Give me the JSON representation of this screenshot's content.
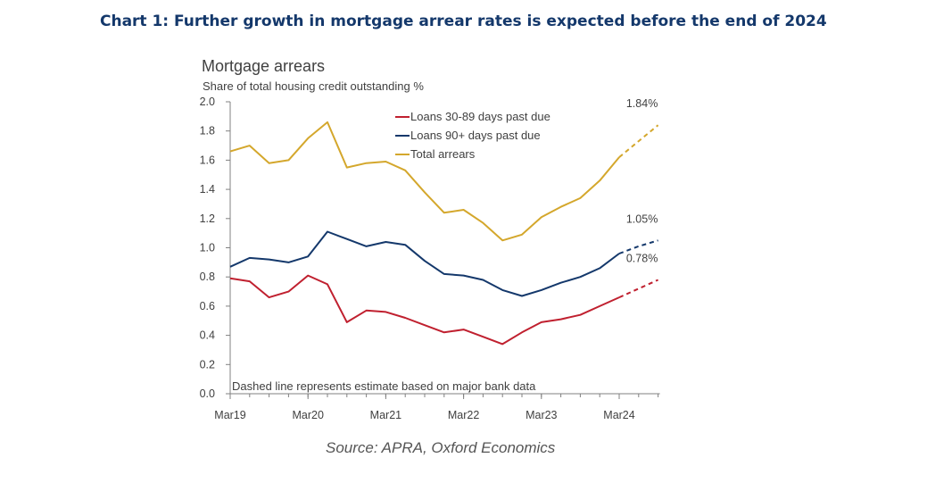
{
  "header": {
    "headline": "Chart 1: Further growth in mortgage arrear rates is expected before the end of 2024"
  },
  "footer": {
    "source": "Source: APRA, Oxford Economics"
  },
  "colors": {
    "series_30_89": "#c0202f",
    "series_90_plus": "#14386b",
    "series_total": "#d4a72c",
    "axis": "#808080"
  },
  "chart_data": {
    "type": "line",
    "title": "Mortgage arrears",
    "subtitle": "Share of total housing credit outstanding %",
    "note": "Dashed line represents estimate based on major bank data",
    "xlabel": "",
    "ylabel": "",
    "ylim": [
      0,
      2.0
    ],
    "yticks": [
      "0.0",
      "0.2",
      "0.4",
      "0.6",
      "0.8",
      "1.0",
      "1.2",
      "1.4",
      "1.6",
      "1.8",
      "2.0"
    ],
    "xticks": [
      "Mar19",
      "Mar20",
      "Mar21",
      "Mar22",
      "Mar23",
      "Mar24"
    ],
    "x": [
      "Mar19",
      "Jun19",
      "Sep19",
      "Dec19",
      "Mar20",
      "Jun20",
      "Sep20",
      "Dec20",
      "Mar21",
      "Jun21",
      "Sep21",
      "Dec21",
      "Mar22",
      "Jun22",
      "Sep22",
      "Dec22",
      "Mar23",
      "Jun23",
      "Sep23",
      "Dec23",
      "Mar24",
      "Jun24",
      "Sep24"
    ],
    "estimate_start": "Mar24",
    "grid": false,
    "legend_position": "top-center",
    "series": [
      {
        "name": "Loans 30-89 days past due",
        "values": [
          0.79,
          0.77,
          0.66,
          0.7,
          0.81,
          0.75,
          0.49,
          0.57,
          0.56,
          0.52,
          0.47,
          0.42,
          0.44,
          0.39,
          0.34,
          0.42,
          0.49,
          0.51,
          0.54,
          0.6,
          0.66,
          0.72,
          0.78
        ],
        "end_label": "0.78%"
      },
      {
        "name": "Loans 90+ days past due",
        "values": [
          0.87,
          0.93,
          0.92,
          0.9,
          0.94,
          1.11,
          1.06,
          1.01,
          1.04,
          1.02,
          0.91,
          0.82,
          0.81,
          0.78,
          0.71,
          0.67,
          0.71,
          0.76,
          0.8,
          0.86,
          0.96,
          1.01,
          1.05
        ],
        "end_label": "1.05%"
      },
      {
        "name": "Total arrears",
        "values": [
          1.66,
          1.7,
          1.58,
          1.6,
          1.75,
          1.86,
          1.55,
          1.58,
          1.59,
          1.53,
          1.38,
          1.24,
          1.26,
          1.17,
          1.05,
          1.09,
          1.21,
          1.28,
          1.34,
          1.46,
          1.62,
          1.73,
          1.84
        ],
        "end_label": "1.84%"
      }
    ]
  }
}
